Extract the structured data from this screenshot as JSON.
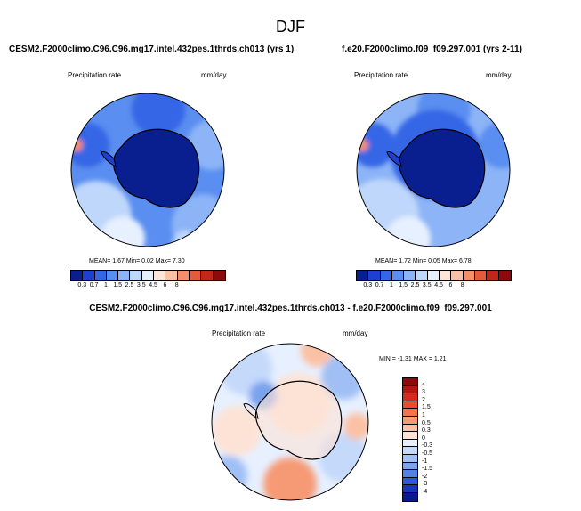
{
  "season": "DJF",
  "panels": [
    {
      "title": "CESM2.F2000climo.C96.C96.mg17.intel.432pes.1thrds.ch013 (yrs 1)",
      "variable": "Precipitation rate",
      "units": "mm/day",
      "mean_label": "MEAN=",
      "mean": "1.67",
      "min_label": "Min=",
      "min": "0.02",
      "max_label": "Max=",
      "max": "7.30"
    },
    {
      "title": "f.e20.F2000climo.f09_f09.297.001 (yrs 2-11)",
      "variable": "Precipitation rate",
      "units": "mm/day",
      "mean_label": "MEAN=",
      "mean": "1.72",
      "min_label": "Min=",
      "min": "0.05",
      "max_label": "Max=",
      "max": "6.78"
    }
  ],
  "diff_panel": {
    "title": "CESM2.F2000climo.C96.C96.mg17.intel.432pes.1thrds.ch013 - f.e20.F2000climo.f09_f09.297.001",
    "variable": "Precipitation rate",
    "units": "mm/day",
    "min_label": "MIN =",
    "min": "-1.31",
    "max_label": "MAX =",
    "max": "1.21"
  },
  "abs_colorbar": {
    "ticks": [
      "0.3",
      "0.7",
      "1",
      "1.5",
      "2.5",
      "3.5",
      "4.5",
      "6",
      "8"
    ],
    "colors": [
      "#0a1f8f",
      "#1f3fd1",
      "#3566e6",
      "#5a8ef0",
      "#8cb4f7",
      "#bfd7fb",
      "#e6f0ff",
      "#fde6d9",
      "#f9c2a5",
      "#f38f6b",
      "#e35a3d",
      "#c02619",
      "#8b0a0a"
    ]
  },
  "diff_colorbar": {
    "ticks": [
      "4",
      "3",
      "2",
      "1.5",
      "1",
      "0.5",
      "0.3",
      "0",
      "-0.3",
      "-0.5",
      "-1",
      "-1.5",
      "-2",
      "-3",
      "-4"
    ],
    "colors": [
      "#8b0a0a",
      "#b3150f",
      "#d42a1a",
      "#ea4d2a",
      "#f2744a",
      "#f69a74",
      "#fbc1a4",
      "#fde3d5",
      "#e7f0ff",
      "#c5d9fb",
      "#9fbff5",
      "#7aa3ee",
      "#5282e6",
      "#2f5ad6",
      "#1936b3",
      "#0a1a8a"
    ]
  }
}
